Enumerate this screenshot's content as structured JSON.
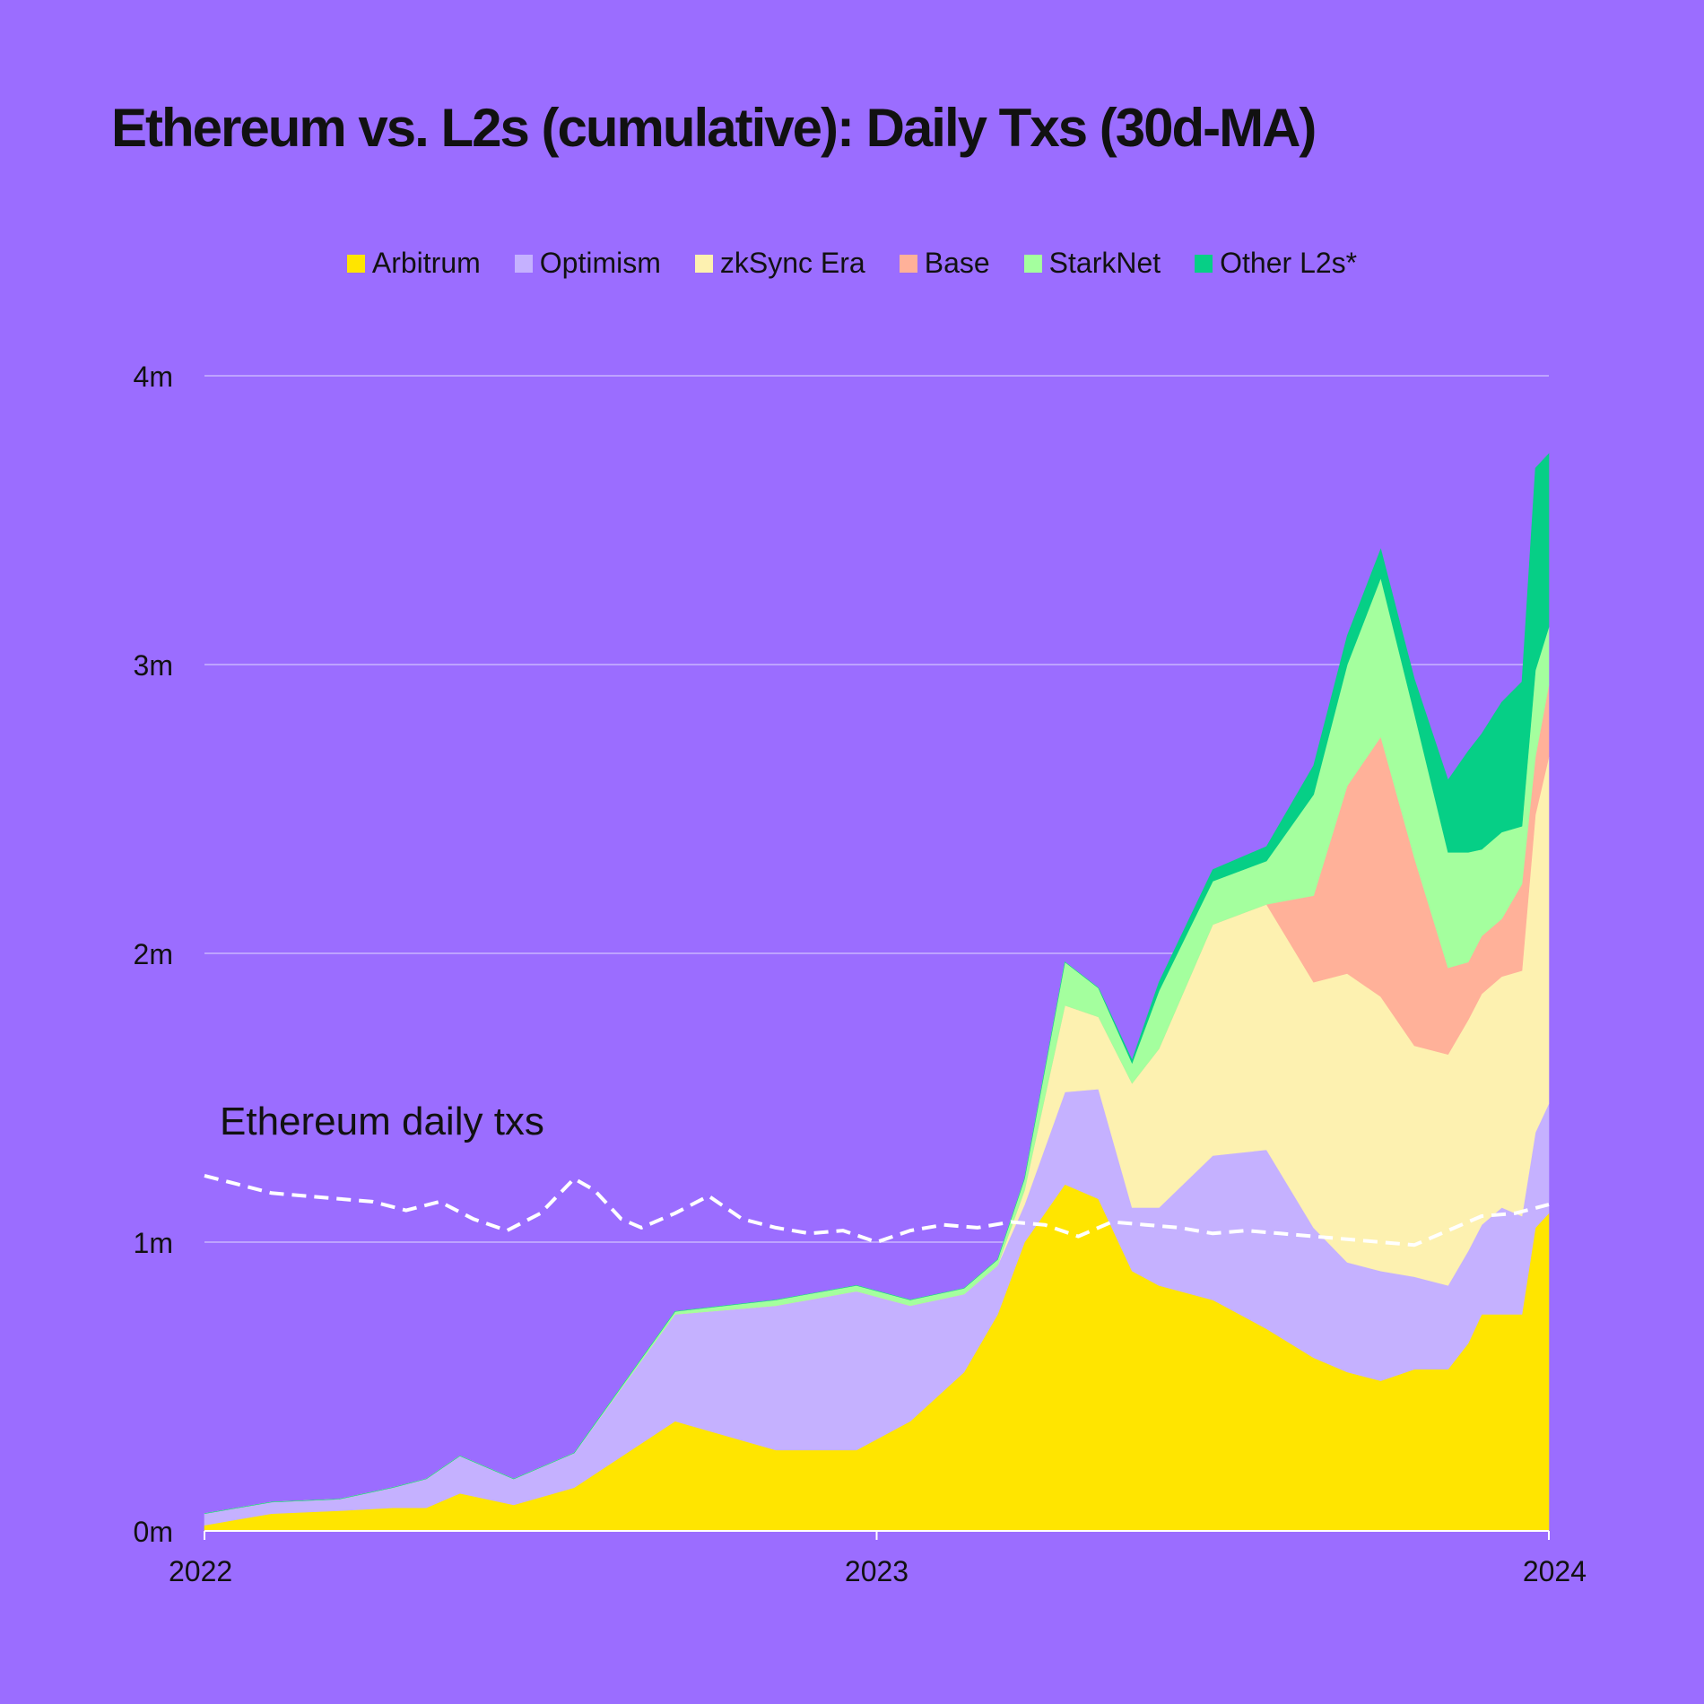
{
  "chart_data": {
    "type": "area",
    "stacked": true,
    "title": "Ethereum vs. L2s (cumulative): Daily Txs (30d-MA)",
    "xlabel": "",
    "ylabel": "",
    "x_domain": [
      2022,
      2024
    ],
    "x_ticks": [
      {
        "value": 2022,
        "label": "2022"
      },
      {
        "value": 2023,
        "label": "2023"
      },
      {
        "value": 2024,
        "label": "2024"
      }
    ],
    "ylim": [
      0,
      4000000
    ],
    "y_ticks": [
      {
        "value": 0,
        "label": "0m"
      },
      {
        "value": 1000000,
        "label": "1m"
      },
      {
        "value": 2000000,
        "label": "2m"
      },
      {
        "value": 3000000,
        "label": "3m"
      },
      {
        "value": 4000000,
        "label": "4m"
      }
    ],
    "grid": true,
    "legend_position": "top-center",
    "x": [
      2022.0,
      2022.1,
      2022.2,
      2022.28,
      2022.33,
      2022.38,
      2022.46,
      2022.55,
      2022.7,
      2022.85,
      2022.97,
      2023.05,
      2023.13,
      2023.18,
      2023.22,
      2023.28,
      2023.33,
      2023.38,
      2023.42,
      2023.5,
      2023.58,
      2023.65,
      2023.7,
      2023.75,
      2023.8,
      2023.85,
      2023.88,
      2023.9,
      2023.93,
      2023.96,
      2023.98,
      2024.0
    ],
    "series": [
      {
        "name": "Arbitrum",
        "color": "#ffe500",
        "values": [
          20000,
          60000,
          70000,
          80000,
          80000,
          130000,
          90000,
          150000,
          380000,
          280000,
          280000,
          380000,
          550000,
          750000,
          1000000,
          1200000,
          1150000,
          900000,
          850000,
          800000,
          700000,
          600000,
          550000,
          520000,
          560000,
          560000,
          650000,
          750000,
          750000,
          750000,
          1050000,
          1100000
        ]
      },
      {
        "name": "Optimism",
        "color": "#c5b1ff",
        "values": [
          40000,
          40000,
          40000,
          70000,
          100000,
          130000,
          90000,
          120000,
          370000,
          500000,
          550000,
          400000,
          270000,
          170000,
          130000,
          320000,
          380000,
          220000,
          270000,
          500000,
          620000,
          450000,
          380000,
          380000,
          320000,
          290000,
          320000,
          310000,
          370000,
          340000,
          330000,
          380000
        ]
      },
      {
        "name": "zkSync Era",
        "color": "#fdf1b0",
        "values": [
          0,
          0,
          0,
          0,
          0,
          0,
          0,
          0,
          0,
          0,
          0,
          0,
          0,
          0,
          50000,
          300000,
          250000,
          430000,
          550000,
          800000,
          850000,
          850000,
          1000000,
          950000,
          800000,
          800000,
          800000,
          800000,
          800000,
          850000,
          1100000,
          1200000
        ]
      },
      {
        "name": "Base",
        "color": "#ffb199",
        "values": [
          0,
          0,
          0,
          0,
          0,
          0,
          0,
          0,
          0,
          0,
          0,
          0,
          0,
          0,
          0,
          0,
          0,
          0,
          0,
          0,
          0,
          300000,
          650000,
          900000,
          650000,
          300000,
          200000,
          200000,
          200000,
          300000,
          200000,
          250000
        ]
      },
      {
        "name": "StarkNet",
        "color": "#a4ff9e",
        "values": [
          0,
          0,
          0,
          0,
          0,
          0,
          0,
          0,
          10000,
          20000,
          20000,
          20000,
          20000,
          20000,
          40000,
          150000,
          100000,
          70000,
          200000,
          150000,
          150000,
          350000,
          420000,
          550000,
          500000,
          400000,
          380000,
          300000,
          300000,
          200000,
          300000,
          200000
        ]
      },
      {
        "name": "Other L2s*",
        "color": "#06cf86",
        "values": [
          0,
          0,
          0,
          0,
          0,
          0,
          0,
          0,
          0,
          0,
          0,
          0,
          0,
          0,
          0,
          0,
          0,
          10000,
          30000,
          40000,
          50000,
          100000,
          100000,
          100000,
          120000,
          250000,
          350000,
          400000,
          450000,
          500000,
          700000,
          600000
        ]
      }
    ],
    "ethereum": {
      "name": "Ethereum daily txs",
      "color": "#ffffff",
      "x": [
        2022.0,
        2022.05,
        2022.1,
        2022.15,
        2022.2,
        2022.25,
        2022.3,
        2022.35,
        2022.4,
        2022.45,
        2022.5,
        2022.55,
        2022.58,
        2022.62,
        2022.65,
        2022.7,
        2022.75,
        2022.8,
        2022.85,
        2022.9,
        2022.95,
        2023.0,
        2023.05,
        2023.1,
        2023.15,
        2023.2,
        2023.25,
        2023.3,
        2023.35,
        2023.4,
        2023.45,
        2023.5,
        2023.55,
        2023.6,
        2023.65,
        2023.7,
        2023.75,
        2023.8,
        2023.85,
        2023.9,
        2023.95,
        2024.0
      ],
      "values": [
        1230000,
        1200000,
        1170000,
        1160000,
        1150000,
        1140000,
        1110000,
        1140000,
        1080000,
        1040000,
        1100000,
        1220000,
        1180000,
        1080000,
        1050000,
        1100000,
        1160000,
        1080000,
        1050000,
        1030000,
        1040000,
        1000000,
        1040000,
        1060000,
        1050000,
        1070000,
        1060000,
        1020000,
        1070000,
        1060000,
        1050000,
        1030000,
        1040000,
        1030000,
        1020000,
        1010000,
        1000000,
        990000,
        1040000,
        1090000,
        1100000,
        1130000
      ]
    },
    "annotations": [
      {
        "text": "Ethereum daily txs"
      }
    ]
  }
}
